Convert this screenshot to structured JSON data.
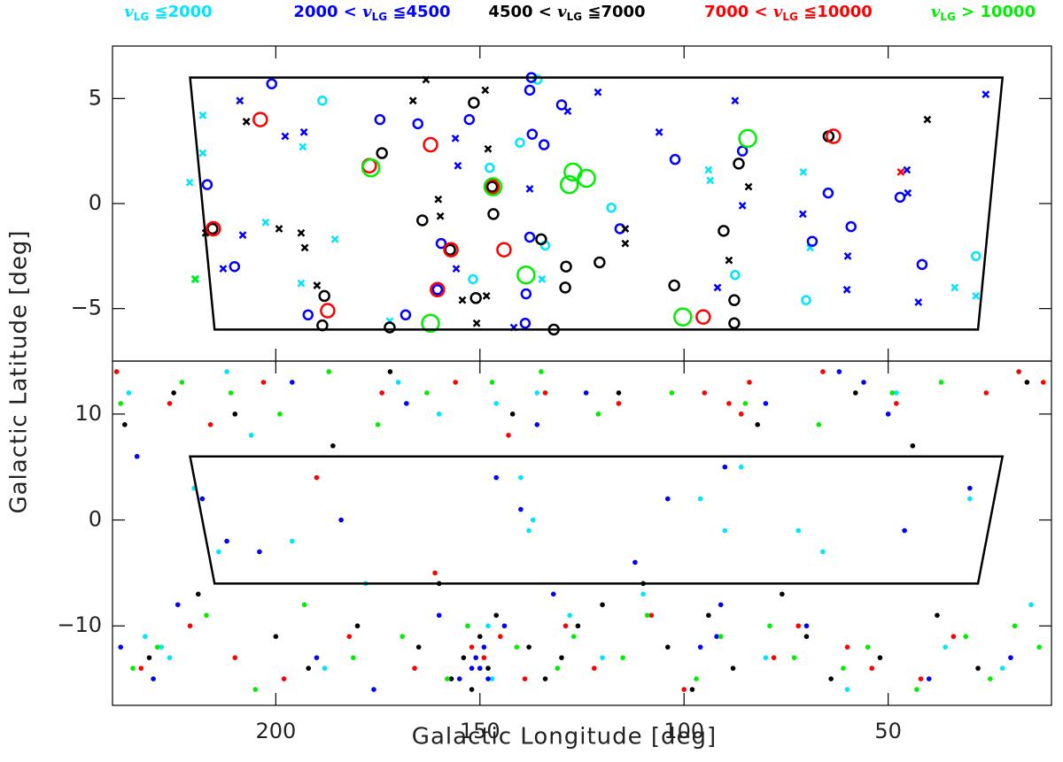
{
  "chart_data": [
    {
      "type": "scatter",
      "legend": [
        {
          "var": "v",
          "sub": "LG",
          "suffix": " ≦2000",
          "color": "#00e5ff"
        },
        {
          "prefix": "2000 < ",
          "var": "v",
          "sub": "LG",
          "suffix": " ≦4500",
          "color": "#0000ff"
        },
        {
          "prefix": "4500 < ",
          "var": "v",
          "sub": "LG",
          "suffix": " ≦7000",
          "color": "#000000"
        },
        {
          "prefix": "7000 < ",
          "var": "v",
          "sub": "LG",
          "suffix": " ≦10000",
          "color": "#ff0000"
        },
        {
          "var": "v",
          "sub": "LG",
          "suffix": " > 10000",
          "color": "#00ee00"
        }
      ],
      "ylabel": "Galactic Latitude  [deg]",
      "xlim": [
        240,
        10
      ],
      "ylim": [
        -7.5,
        7.5
      ],
      "yticks": [
        {
          "value": -5,
          "label": "−5"
        },
        0,
        5
      ],
      "region": {
        "x": [
          221,
          22,
          28,
          215
        ],
        "y": [
          6,
          6,
          -6,
          -6
        ]
      },
      "series": [
        {
          "color": "#00e5ff",
          "marker": "circle",
          "x": [
            188.6,
            147.6,
            140.2,
            135.9,
            117.8,
            87.5,
            70.1,
            28.5,
            151.7,
            134
          ],
          "values": [
            4.9,
            1.7,
            2.9,
            5.9,
            -0.2,
            -3.4,
            -4.6,
            -2.5,
            -3.6,
            -2.0
          ]
        },
        {
          "color": "#00e5ff",
          "marker": "cross",
          "x": [
            217.9,
            217.9,
            221.1,
            202.5,
            193.4,
            185.5,
            193.8,
            172.1,
            134.8,
            94,
            93.6,
            70.8,
            69.1,
            33.7,
            28.5,
            219.6
          ],
          "values": [
            2.4,
            4.2,
            1.0,
            -0.9,
            2.7,
            -1.7,
            -3.8,
            -5.6,
            -3.6,
            1.6,
            1.1,
            1.5,
            -2.1,
            -4.0,
            -4.4,
            -3.6
          ]
        },
        {
          "color": "#0000ff",
          "marker": "circle",
          "x": [
            201,
            216.8,
            210.1,
            174.5,
            165.2,
            159.5,
            160.4,
            152.6,
            137.4,
            137.8,
            137.2,
            134.3,
            130,
            137.8,
            138.7,
            138.9,
            115.7,
            102.2,
            85.7,
            64.7,
            59.1,
            41.7,
            47.1,
            68.6,
            192.1,
            168.2
          ],
          "values": [
            5.7,
            0.9,
            -3.0,
            4.0,
            3.8,
            -1.9,
            -4.1,
            4.0,
            6.0,
            5.4,
            3.3,
            2.8,
            4.7,
            -1.6,
            -4.3,
            -5.7,
            -1.2,
            2.1,
            2.5,
            0.5,
            -1.1,
            -2.9,
            0.3,
            -1.8,
            -5.3,
            -5.3
          ]
        },
        {
          "color": "#0000ff",
          "marker": "cross",
          "x": [
            208.8,
            197.7,
            193.1,
            208.1,
            212.9,
            156,
            155.4,
            137.8,
            128.5,
            121.1,
            106.1,
            87.5,
            85.7,
            70.9,
            59.9,
            45.4,
            45.2,
            26.1,
            60.1,
            42.6,
            91.8,
            155.8,
            141.7
          ],
          "values": [
            4.9,
            3.2,
            3.4,
            -1.5,
            -3.1,
            3.1,
            1.8,
            0.7,
            4.4,
            5.3,
            3.4,
            4.9,
            -0.1,
            -0.5,
            -2.5,
            1.6,
            0.5,
            5.2,
            -4.1,
            -4.7,
            -4.0,
            -3.1,
            -5.9
          ]
        },
        {
          "color": "#000000",
          "marker": "circle",
          "x": [
            215.5,
            188.1,
            188.6,
            174,
            172.1,
            164.1,
            157.3,
            151.5,
            147,
            146.7,
            151,
            135,
            128.9,
            129.1,
            131.9,
            120.7,
            102.4,
            90.3,
            86.6,
            87.7,
            87.7,
            64.6
          ],
          "values": [
            -1.2,
            -4.4,
            -5.8,
            2.4,
            -5.9,
            -0.8,
            -2.2,
            4.8,
            0.8,
            -0.5,
            -4.5,
            -1.7,
            -3.0,
            -4.0,
            -6.0,
            -2.8,
            -3.9,
            -1.3,
            1.9,
            -4.6,
            -5.7,
            3.2
          ]
        },
        {
          "color": "#000000",
          "marker": "cross",
          "x": [
            207.2,
            217.2,
            199.2,
            193.8,
            192.9,
            189.9,
            166.4,
            163.2,
            160.2,
            159.7,
            148.7,
            148,
            154.3,
            148.4,
            150.8,
            114.4,
            114.4,
            40.4,
            84.2,
            89
          ],
          "values": [
            3.9,
            -1.4,
            -1.2,
            -1.4,
            -2.1,
            -3.9,
            4.9,
            5.9,
            0.2,
            -0.6,
            5.4,
            2.6,
            -4.6,
            -4.4,
            -5.7,
            -1.2,
            -1.9,
            4.0,
            0.8,
            -2.7
          ]
        },
        {
          "color": "#ff0000",
          "marker": "circle",
          "x": [
            203.8,
            177.1,
            162.1,
            157.1,
            160.4,
            147,
            187.3,
            144.1,
            63.4,
            95.3,
            215.3
          ],
          "values": [
            4.0,
            1.8,
            2.8,
            -2.2,
            -4.1,
            0.8,
            -5.1,
            -2.2,
            3.2,
            -5.4,
            -1.2
          ]
        },
        {
          "color": "#ff0000",
          "marker": "cross",
          "x": [
            46.9
          ],
          "values": [
            1.5
          ]
        },
        {
          "color": "#00ee00",
          "marker": "circle",
          "x": [
            176.7,
            162.1,
            146.8,
            138.7,
            127.2,
            123.9,
            128.1,
            100.3,
            84.4
          ],
          "values": [
            1.7,
            -5.7,
            0.8,
            -3.4,
            1.5,
            1.2,
            0.9,
            -5.4,
            3.1
          ]
        },
        {
          "color": "#00ee00",
          "marker": "cross",
          "x": [
            219.8
          ],
          "values": [
            -3.6
          ]
        }
      ]
    },
    {
      "type": "scatter",
      "xlabel": "Galactic Longitude  [deg]",
      "xlim": [
        240,
        10
      ],
      "ylim": [
        -17.5,
        15
      ],
      "xticks": [
        200,
        150,
        100,
        50
      ],
      "yticks": [
        {
          "value": -10,
          "label": "−10"
        },
        0,
        10
      ],
      "region": {
        "x": [
          221,
          22,
          28,
          215
        ],
        "y": [
          6,
          6,
          -6,
          -6
        ]
      },
      "series": [
        {
          "color": "#00e5ff",
          "marker": "dot",
          "x": [
            236,
            232,
            228,
            220,
            214,
            206,
            196,
            188,
            178,
            170,
            160,
            150,
            147,
            146,
            140,
            138,
            137,
            136,
            128,
            120,
            110,
            96,
            90,
            86,
            80,
            72,
            66,
            60,
            48,
            36,
            30,
            22,
            15,
            148,
            212,
            226
          ],
          "values": [
            12,
            -11,
            -12,
            3,
            -3,
            8,
            -2,
            -14,
            -6,
            13,
            10,
            -14,
            -15,
            11,
            4,
            -1,
            0,
            12,
            -9,
            -13,
            -7,
            2,
            -1,
            5,
            -13,
            -1,
            -3,
            -16,
            12,
            -12,
            2,
            -14,
            -8,
            -10,
            14,
            -13
          ]
        },
        {
          "color": "#0000ff",
          "marker": "dot",
          "x": [
            238,
            234,
            230,
            224,
            218,
            212,
            204,
            196,
            190,
            184,
            176,
            168,
            160,
            155,
            152,
            151,
            150,
            149,
            148,
            146,
            144,
            140,
            136,
            132,
            124,
            112,
            104,
            96,
            92,
            91,
            90,
            80,
            70,
            62,
            56,
            50,
            46,
            40,
            30,
            20
          ],
          "values": [
            -12,
            6,
            -15,
            -8,
            2,
            -2,
            -3,
            13,
            -13,
            0,
            -16,
            11,
            -9,
            -15,
            -14,
            -13,
            -14,
            -12,
            -15,
            4,
            -10,
            1,
            9,
            -7,
            12,
            -4,
            2,
            -12,
            -11,
            -8,
            5,
            11,
            -10,
            14,
            13,
            10,
            -1,
            -15,
            3,
            -13
          ]
        },
        {
          "color": "#000000",
          "marker": "dot",
          "x": [
            237,
            231,
            225,
            219,
            210,
            200,
            192,
            186,
            180,
            172,
            165,
            160,
            157,
            154,
            152,
            150,
            148,
            146,
            142,
            138,
            134,
            130,
            126,
            120,
            116,
            110,
            104,
            98,
            94,
            88,
            82,
            76,
            70,
            64,
            58,
            52,
            44,
            38,
            28,
            16
          ],
          "values": [
            9,
            -13,
            12,
            -7,
            10,
            -11,
            -14,
            7,
            -10,
            14,
            -12,
            -6,
            -15,
            -13,
            -16,
            -11,
            -14,
            -9,
            10,
            -12,
            -15,
            -13,
            -10,
            -8,
            12,
            -6,
            -12,
            -16,
            -9,
            -14,
            9,
            -7,
            -11,
            -15,
            12,
            -13,
            7,
            -9,
            -14,
            13
          ]
        },
        {
          "color": "#ff0000",
          "marker": "dot",
          "x": [
            239,
            233,
            226,
            221,
            216,
            210,
            203,
            198,
            190,
            182,
            174,
            166,
            161,
            156,
            152,
            149,
            145,
            143,
            139,
            134,
            129,
            122,
            116,
            108,
            100,
            95,
            89,
            86,
            84,
            78,
            72,
            66,
            60,
            54,
            48,
            42,
            34,
            26,
            18,
            12
          ],
          "values": [
            14,
            -14,
            11,
            -10,
            9,
            -13,
            13,
            -15,
            4,
            -11,
            12,
            -14,
            -5,
            13,
            -12,
            -13,
            -11,
            8,
            -15,
            12,
            -10,
            -14,
            11,
            -9,
            -16,
            12,
            11,
            10,
            13,
            -13,
            -10,
            14,
            -12,
            -14,
            11,
            -15,
            -11,
            12,
            14,
            13
          ]
        },
        {
          "color": "#00ee00",
          "marker": "dot",
          "x": [
            238,
            235,
            229,
            223,
            217,
            211,
            205,
            199,
            193,
            187,
            181,
            175,
            169,
            163,
            158,
            153,
            147,
            141,
            135,
            131,
            127,
            121,
            115,
            109,
            103,
            97,
            91,
            85,
            79,
            73,
            67,
            61,
            55,
            49,
            43,
            37,
            31,
            25,
            19,
            13
          ],
          "values": [
            11,
            -14,
            -12,
            13,
            -9,
            12,
            -16,
            10,
            -8,
            14,
            -13,
            9,
            -11,
            12,
            -15,
            -10,
            13,
            -12,
            14,
            -14,
            -11,
            10,
            -13,
            -9,
            12,
            -15,
            -11,
            11,
            -10,
            -13,
            9,
            -14,
            -12,
            12,
            -16,
            13,
            -11,
            -15,
            -10,
            -12
          ]
        }
      ]
    }
  ]
}
